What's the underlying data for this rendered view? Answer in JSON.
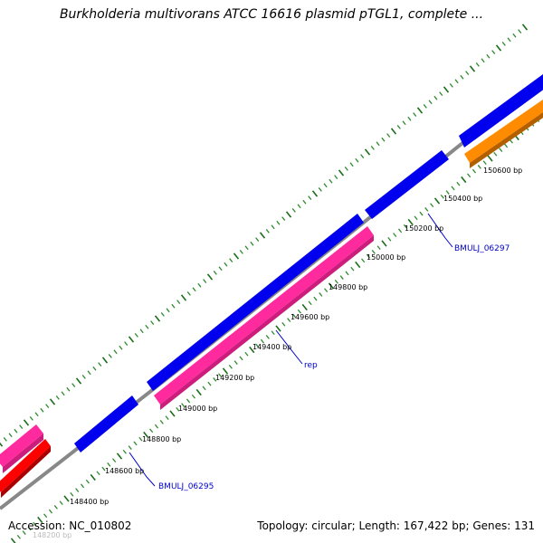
{
  "title": "Burkholderia multivorans ATCC 16616 plasmid pTGL1, complete ...",
  "accession": "Accession: NC_010802",
  "summary": "Topology: circular; Length: 167,422 bp; Genes: 131",
  "colors": {
    "backbone": "#888888",
    "tick_major": "#1a6e1a",
    "tick_minor": "#2b8a2b",
    "gene_blue": "#0000ee",
    "gene_pink": "#ff2a9e",
    "gene_red": "#ff0000",
    "gene_orange": "#ff8c00",
    "gene_label": "#0000cc",
    "callout_line": "#0000cc"
  },
  "ticks": [
    {
      "label": "148200 bp",
      "faded": true
    },
    {
      "label": "148400 bp"
    },
    {
      "label": "148600 bp"
    },
    {
      "label": "148800 bp"
    },
    {
      "label": "149000 bp"
    },
    {
      "label": "149200 bp"
    },
    {
      "label": "149400 bp"
    },
    {
      "label": "149600 bp"
    },
    {
      "label": "149800 bp"
    },
    {
      "label": "150000 bp"
    },
    {
      "label": "150200 bp"
    },
    {
      "label": "150400 bp"
    },
    {
      "label": "150600 bp"
    }
  ],
  "gene_labels": {
    "bmulj_06295": "BMULJ_06295",
    "rep": "rep",
    "bmulj_06297": "BMULJ_06297"
  }
}
